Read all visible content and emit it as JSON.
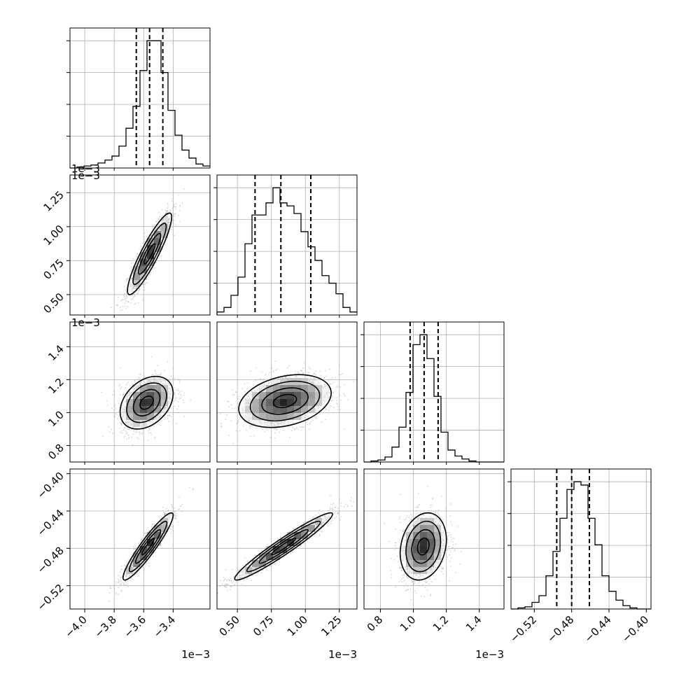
{
  "chart_data": {
    "type": "corner",
    "variables": [
      {
        "name": "",
        "range": [
          -4.1,
          -3.15
        ],
        "ticks": [
          -4.0,
          -3.8,
          -3.6,
          -3.4
        ],
        "tick_labels": [
          "−4.0",
          "−3.8",
          "−3.6",
          "−3.4"
        ],
        "offset": "1e−3"
      },
      {
        "name": "",
        "range": [
          0.35,
          1.38
        ],
        "ticks": [
          0.5,
          0.75,
          1.0,
          1.25
        ],
        "tick_labels": [
          "0.50",
          "0.75",
          "1.00",
          "1.25"
        ],
        "offset": "1e−3"
      },
      {
        "name": "",
        "range": [
          0.7,
          1.55
        ],
        "ticks": [
          0.8,
          1.0,
          1.2,
          1.4
        ],
        "tick_labels": [
          "0.8",
          "1.0",
          "1.2",
          "1.4"
        ],
        "offset": "1e−3"
      },
      {
        "name": "",
        "range": [
          -0.545,
          -0.395
        ],
        "ticks": [
          -0.52,
          -0.48,
          -0.44,
          -0.4
        ],
        "tick_labels": [
          "−0.52",
          "−0.48",
          "−0.44",
          "−0.40"
        ],
        "offset": ""
      }
    ],
    "diagonal": [
      {
        "quantiles": [
          -3.65,
          -3.56,
          -3.47
        ],
        "bin_start": -4.1,
        "bin_width": 0.0475,
        "counts": [
          0,
          1,
          2,
          3,
          5,
          8,
          12,
          22,
          40,
          62,
          98,
          128,
          128,
          96,
          58,
          33,
          18,
          10,
          4,
          2
        ]
      },
      {
        "quantiles": [
          0.63,
          0.82,
          1.04
        ],
        "bin_start": 0.35,
        "bin_width": 0.0515,
        "counts": [
          2,
          5,
          13,
          25,
          47,
          66,
          66,
          74,
          84,
          74,
          72,
          67,
          55,
          45,
          36,
          26,
          21,
          14,
          5,
          2
        ]
      },
      {
        "quantiles": [
          0.98,
          1.065,
          1.15
        ],
        "bin_start": 0.7,
        "bin_width": 0.0425,
        "counts": [
          0,
          1,
          2,
          5,
          15,
          35,
          70,
          118,
          128,
          104,
          66,
          30,
          12,
          6,
          3,
          1,
          0,
          0,
          0,
          0
        ]
      },
      {
        "quantiles": [
          -0.496,
          -0.48,
          -0.461
        ],
        "bin_start": -0.545,
        "bin_width": 0.0075,
        "counts": [
          0,
          1,
          2,
          6,
          12,
          30,
          52,
          82,
          108,
          115,
          112,
          82,
          58,
          30,
          16,
          8,
          3,
          1,
          0,
          0
        ]
      }
    ],
    "pairs": [
      {
        "x": 0,
        "y": 1,
        "center": [
          -3.56,
          0.8
        ],
        "std": [
          0.075,
          0.15
        ],
        "corr": 0.9
      },
      {
        "x": 0,
        "y": 2,
        "center": [
          -3.58,
          1.06
        ],
        "std": [
          0.09,
          0.08
        ],
        "corr": 0.35
      },
      {
        "x": 1,
        "y": 2,
        "center": [
          0.85,
          1.07
        ],
        "std": [
          0.17,
          0.08
        ],
        "corr": 0.3
      },
      {
        "x": 0,
        "y": 3,
        "center": [
          -3.57,
          -0.478
        ],
        "std": [
          0.085,
          0.018
        ],
        "corr": 0.93
      },
      {
        "x": 1,
        "y": 3,
        "center": [
          0.84,
          -0.478
        ],
        "std": [
          0.18,
          0.018
        ],
        "corr": 0.96
      },
      {
        "x": 2,
        "y": 3,
        "center": [
          1.06,
          -0.478
        ],
        "std": [
          0.07,
          0.018
        ],
        "corr": 0.2
      }
    ],
    "grid": true,
    "contour_levels": [
      0.5,
      1.0,
      1.5,
      2.0
    ]
  }
}
